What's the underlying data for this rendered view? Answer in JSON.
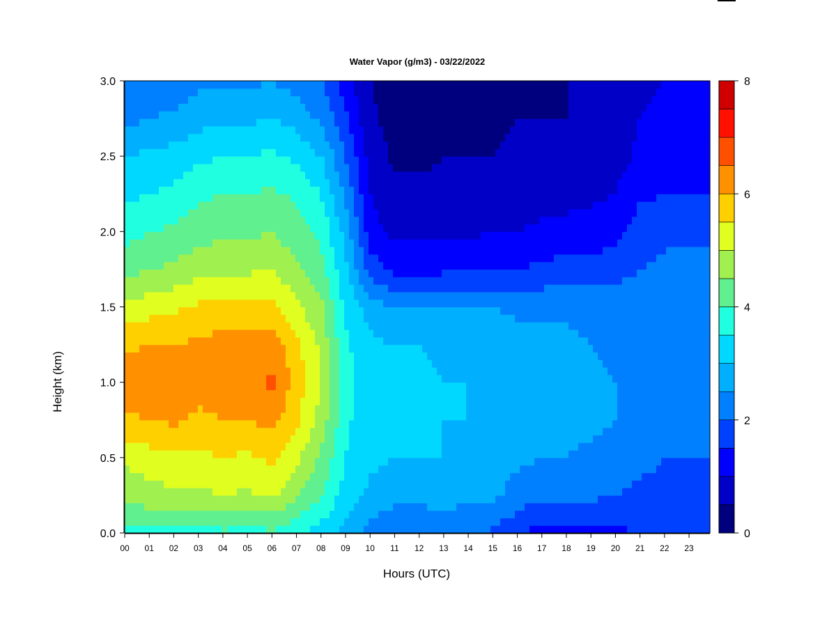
{
  "chart_data": {
    "type": "heatmap",
    "title": "Water Vapor (g/m3) - 03/22/2022",
    "xlabel": "Hours (UTC)",
    "ylabel": "Height (km)",
    "xlim": [
      0,
      23.85
    ],
    "ylim": [
      0,
      3.0
    ],
    "x_ticks": [
      "00",
      "01",
      "02",
      "03",
      "04",
      "05",
      "06",
      "07",
      "08",
      "09",
      "10",
      "11",
      "12",
      "13",
      "14",
      "15",
      "16",
      "17",
      "18",
      "19",
      "20",
      "21",
      "22",
      "23"
    ],
    "y_ticks": [
      "0.0",
      "0.5",
      "1.0",
      "1.5",
      "2.0",
      "2.5",
      "3.0"
    ],
    "colorbar": {
      "min": 0,
      "max": 8,
      "ticks": [
        "0",
        "2",
        "4",
        "6",
        "8"
      ],
      "levels": [
        0,
        0.5,
        1,
        1.5,
        2,
        2.5,
        3,
        3.5,
        4,
        4.5,
        5,
        5.5,
        6,
        6.5,
        7,
        7.5,
        8
      ],
      "colors": [
        "#00007f",
        "#0000c6",
        "#0000ff",
        "#0040ff",
        "#0080ff",
        "#00b0ff",
        "#00d8ff",
        "#20ffe0",
        "#60f090",
        "#a0f050",
        "#e0ff20",
        "#ffd000",
        "#ff9000",
        "#ff5000",
        "#ff1000",
        "#d00000",
        "#800000"
      ]
    },
    "heights_km": [
      0.0,
      0.25,
      0.5,
      0.75,
      1.0,
      1.25,
      1.5,
      1.75,
      2.0,
      2.25,
      2.5,
      2.75,
      3.0
    ],
    "hours": [
      0,
      1,
      2,
      3,
      4,
      5,
      6,
      7,
      8,
      9,
      10,
      11,
      12,
      13,
      14,
      15,
      16,
      17,
      18,
      19,
      20,
      21,
      22,
      23
    ],
    "values": [
      [
        3.8,
        4.6,
        5.1,
        5.9,
        6.3,
        5.9,
        5.1,
        4.3,
        3.8,
        3.4,
        3.0,
        2.3,
        2.0
      ],
      [
        3.9,
        4.8,
        5.3,
        6.0,
        6.4,
        6.0,
        5.3,
        4.5,
        4.0,
        3.5,
        3.1,
        2.5,
        2.1
      ],
      [
        3.7,
        4.9,
        5.4,
        6.1,
        6.4,
        6.0,
        5.4,
        4.6,
        4.1,
        3.6,
        3.2,
        2.6,
        2.2
      ],
      [
        3.8,
        4.9,
        5.4,
        5.9,
        6.2,
        6.1,
        5.6,
        4.8,
        4.3,
        3.9,
        3.4,
        2.8,
        2.4
      ],
      [
        3.9,
        5.0,
        5.5,
        6.0,
        6.3,
        6.2,
        5.7,
        4.9,
        4.4,
        4.0,
        3.5,
        2.9,
        2.4
      ],
      [
        3.8,
        4.9,
        5.4,
        6.0,
        6.3,
        6.2,
        5.7,
        4.9,
        4.4,
        4.0,
        3.5,
        2.9,
        2.4
      ],
      [
        3.9,
        5.1,
        5.6,
        6.2,
        6.6,
        6.3,
        5.7,
        5.0,
        4.5,
        4.1,
        3.6,
        3.0,
        2.5
      ],
      [
        3.6,
        4.6,
        5.1,
        5.6,
        5.8,
        5.6,
        5.1,
        4.6,
        4.2,
        3.9,
        3.4,
        2.8,
        2.3
      ],
      [
        3.3,
        4.0,
        4.4,
        4.8,
        5.0,
        4.9,
        4.6,
        4.2,
        3.9,
        3.5,
        3.0,
        2.4,
        2.0
      ],
      [
        2.8,
        3.3,
        3.5,
        3.6,
        3.7,
        3.6,
        3.4,
        3.1,
        2.8,
        2.4,
        2.0,
        1.6,
        1.2
      ],
      [
        2.3,
        2.9,
        3.1,
        3.2,
        3.2,
        3.1,
        2.8,
        1.8,
        1.2,
        1.0,
        0.8,
        0.6,
        0.5
      ],
      [
        2.0,
        2.7,
        3.0,
        3.1,
        3.1,
        3.0,
        2.5,
        1.3,
        0.9,
        0.6,
        0.4,
        0.3,
        0.3
      ],
      [
        2.0,
        2.7,
        3.0,
        3.1,
        3.1,
        3.0,
        2.5,
        1.3,
        0.9,
        0.6,
        0.4,
        0.3,
        0.3
      ],
      [
        2.1,
        2.7,
        3.0,
        3.0,
        3.0,
        2.9,
        2.5,
        1.4,
        0.9,
        0.6,
        0.5,
        0.3,
        0.3
      ],
      [
        2.2,
        2.6,
        2.9,
        3.0,
        3.0,
        2.9,
        2.5,
        1.4,
        0.9,
        0.6,
        0.5,
        0.4,
        0.3
      ],
      [
        1.9,
        2.6,
        2.8,
        2.9,
        2.9,
        2.8,
        2.5,
        1.5,
        1.0,
        0.7,
        0.5,
        0.4,
        0.3
      ],
      [
        1.6,
        2.3,
        2.6,
        2.8,
        2.8,
        2.7,
        2.4,
        1.5,
        1.0,
        0.7,
        0.6,
        0.5,
        0.4
      ],
      [
        1.3,
        2.1,
        2.5,
        2.7,
        2.7,
        2.6,
        2.4,
        1.6,
        1.1,
        0.8,
        0.6,
        0.5,
        0.4
      ],
      [
        1.3,
        2.1,
        2.5,
        2.6,
        2.6,
        2.6,
        2.4,
        1.7,
        1.2,
        0.8,
        0.7,
        0.5,
        0.5
      ],
      [
        1.3,
        2.1,
        2.4,
        2.6,
        2.6,
        2.5,
        2.3,
        1.7,
        1.2,
        0.9,
        0.7,
        0.6,
        0.6
      ],
      [
        1.3,
        2.0,
        2.3,
        2.5,
        2.5,
        2.4,
        2.3,
        1.8,
        1.3,
        1.0,
        0.8,
        0.7,
        0.7
      ],
      [
        1.6,
        1.9,
        2.1,
        2.3,
        2.4,
        2.4,
        2.3,
        2.0,
        1.8,
        1.4,
        1.1,
        1.0,
        0.9
      ],
      [
        1.7,
        1.9,
        2.0,
        2.2,
        2.3,
        2.4,
        2.3,
        2.1,
        1.9,
        1.5,
        1.2,
        1.1,
        1.0
      ],
      [
        1.7,
        1.9,
        2.0,
        2.1,
        2.3,
        2.4,
        2.3,
        2.1,
        1.9,
        1.5,
        1.2,
        1.1,
        1.0
      ]
    ]
  }
}
